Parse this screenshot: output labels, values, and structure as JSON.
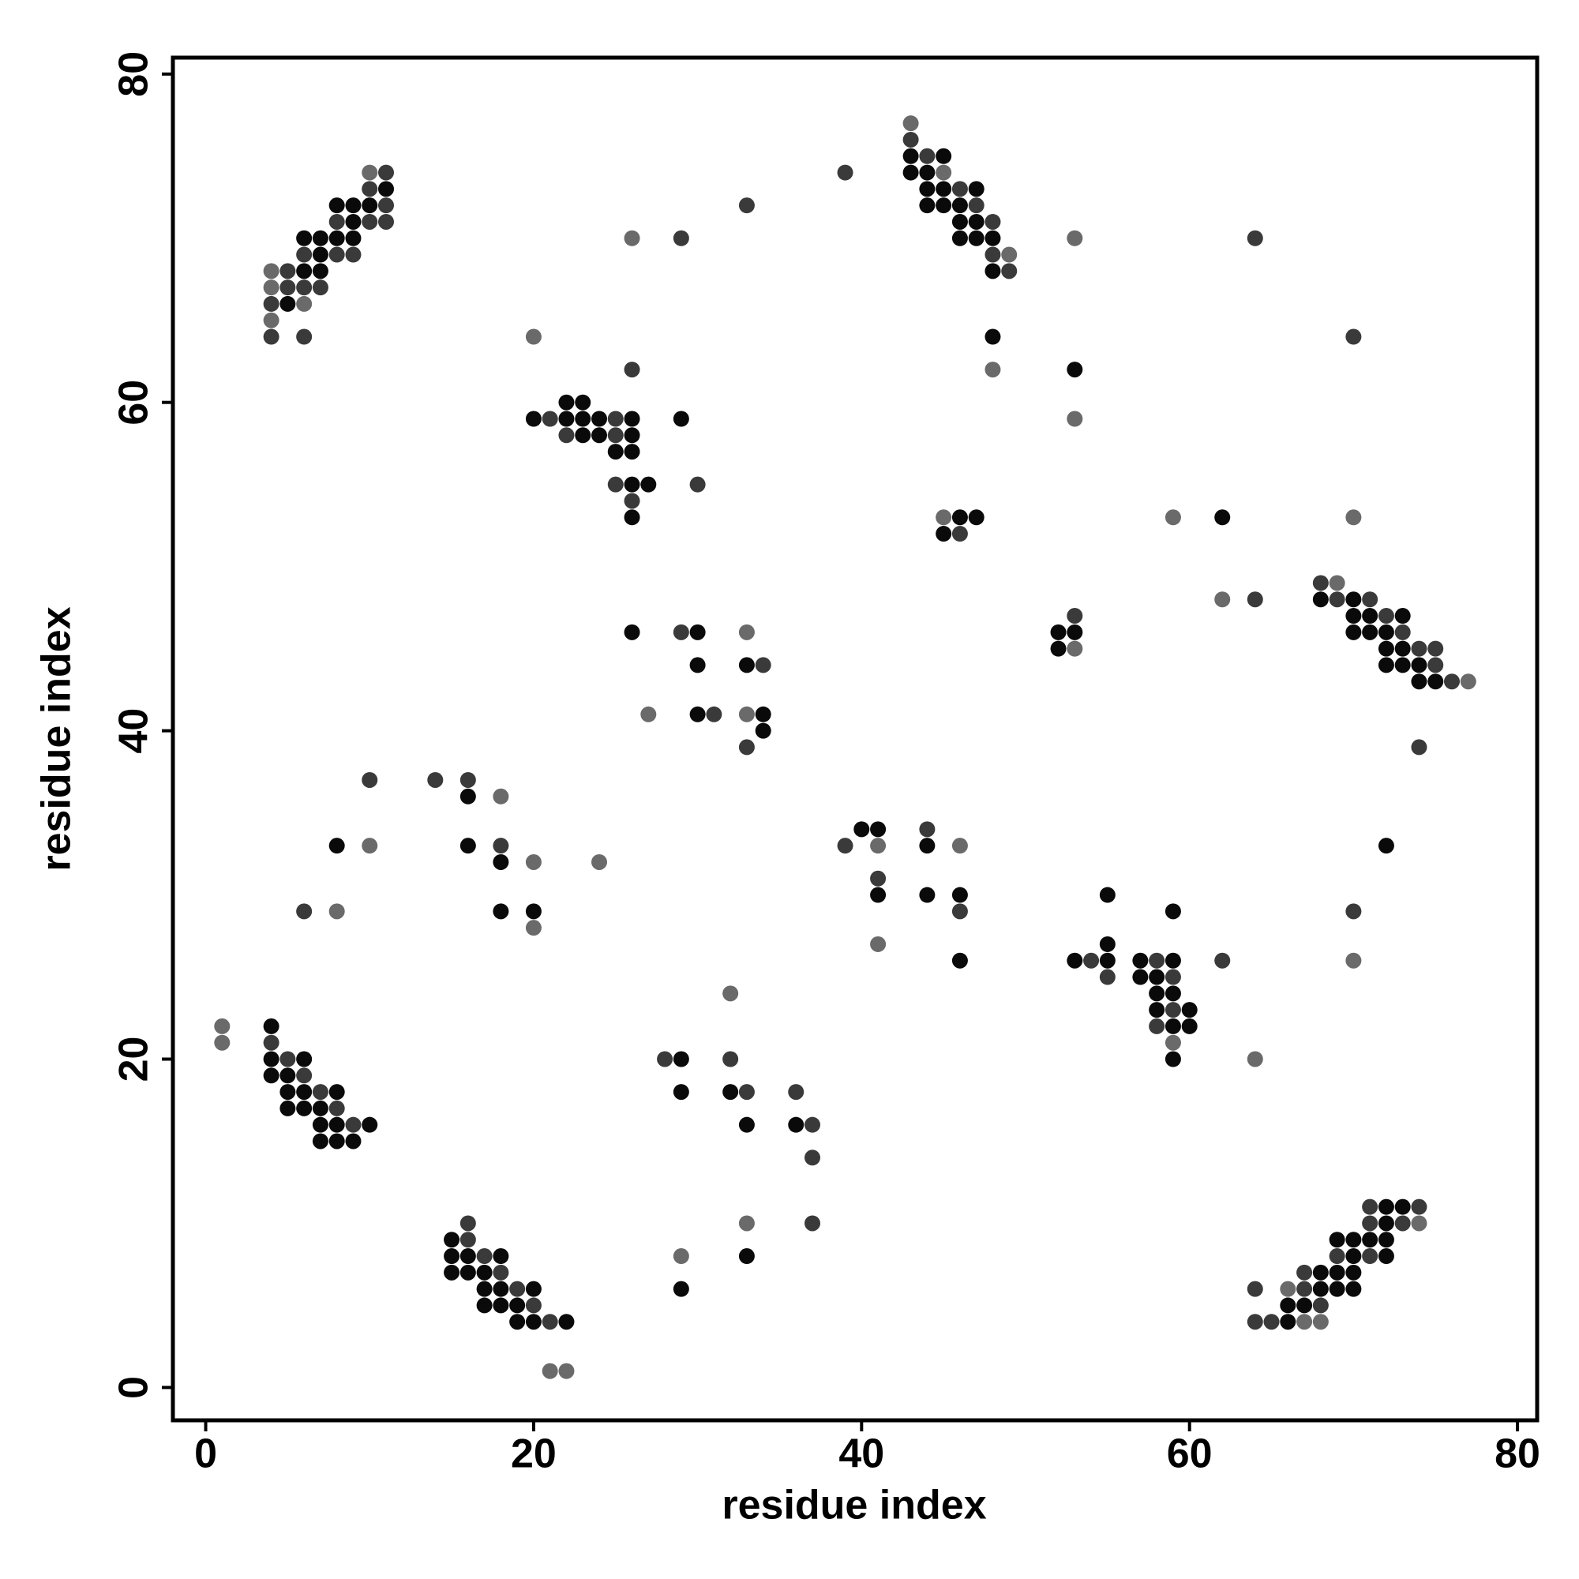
{
  "chart_data": {
    "type": "scatter",
    "x_label": "residue index",
    "y_label": "residue index",
    "xlim": [
      -2,
      81.2
    ],
    "ylim": [
      -2,
      81
    ],
    "xticks": [
      0,
      20,
      40,
      60,
      80
    ],
    "yticks": [
      0,
      20,
      40,
      60,
      80
    ],
    "series": [
      {
        "color": "#0a0a0a",
        "x": [
          11,
          8,
          9,
          10,
          9,
          6,
          7,
          8,
          9,
          7,
          6,
          7,
          5,
          43,
          45,
          43,
          44,
          44,
          45,
          47,
          44,
          45,
          46,
          46,
          47,
          46,
          47,
          48,
          48,
          48,
          53,
          22,
          23,
          20,
          22,
          23,
          24,
          26,
          29,
          23,
          24,
          26,
          25,
          26,
          26,
          27,
          26,
          46,
          47,
          45,
          62,
          68,
          70,
          70,
          71,
          73,
          70,
          71,
          72,
          72,
          73,
          72,
          73,
          74,
          74,
          75,
          52,
          53,
          52,
          26,
          30,
          30,
          33,
          30,
          34,
          34,
          16,
          8,
          16,
          18,
          18,
          20,
          40,
          41,
          44,
          41,
          44,
          46,
          46,
          55,
          59,
          72,
          55,
          53,
          55,
          57,
          59,
          57,
          58,
          58,
          59,
          58,
          60,
          59,
          60,
          59,
          4,
          4,
          6,
          4,
          5,
          5,
          6,
          8,
          5,
          6,
          7,
          7,
          8,
          10,
          7,
          8,
          9,
          29,
          29,
          32,
          33,
          36,
          33,
          29,
          15,
          15,
          16,
          18,
          15,
          16,
          17,
          17,
          18,
          20,
          17,
          18,
          19,
          19,
          20,
          22,
          72,
          73,
          72,
          69,
          70,
          71,
          72,
          70,
          72,
          68,
          69,
          70,
          68,
          69,
          70,
          66,
          67,
          66
        ],
        "values": [
          73,
          72,
          72,
          72,
          71,
          70,
          70,
          70,
          70,
          69,
          68,
          68,
          66,
          75,
          75,
          74,
          74,
          73,
          73,
          73,
          72,
          72,
          72,
          71,
          71,
          70,
          70,
          70,
          68,
          64,
          62,
          60,
          60,
          59,
          59,
          59,
          59,
          59,
          59,
          58,
          58,
          58,
          57,
          57,
          55,
          55,
          53,
          53,
          53,
          52,
          53,
          48,
          48,
          47,
          47,
          47,
          46,
          46,
          46,
          45,
          45,
          44,
          44,
          44,
          43,
          43,
          46,
          46,
          45,
          46,
          46,
          44,
          44,
          41,
          41,
          40,
          36,
          33,
          33,
          32,
          29,
          29,
          34,
          34,
          33,
          30,
          30,
          30,
          26,
          30,
          29,
          33,
          27,
          26,
          26,
          26,
          26,
          25,
          25,
          24,
          24,
          23,
          23,
          22,
          22,
          20,
          22,
          20,
          20,
          19,
          19,
          18,
          18,
          18,
          17,
          17,
          17,
          16,
          16,
          16,
          15,
          15,
          15,
          20,
          18,
          18,
          16,
          16,
          8,
          6,
          9,
          8,
          8,
          8,
          7,
          7,
          7,
          6,
          6,
          6,
          5,
          5,
          5,
          4,
          4,
          4,
          11,
          11,
          10,
          9,
          9,
          9,
          9,
          8,
          8,
          7,
          7,
          7,
          6,
          6,
          6,
          5,
          5,
          4
        ]
      },
      {
        "color": "#3a3a3a",
        "x": [
          11,
          10,
          11,
          8,
          10,
          11,
          6,
          8,
          9,
          5,
          5,
          6,
          7,
          4,
          4,
          6,
          33,
          29,
          39,
          43,
          44,
          46,
          47,
          48,
          48,
          49,
          64,
          26,
          70,
          21,
          25,
          22,
          25,
          25,
          30,
          26,
          46,
          68,
          69,
          71,
          64,
          72,
          73,
          74,
          75,
          75,
          76,
          74,
          53,
          29,
          34,
          31,
          33,
          10,
          14,
          16,
          18,
          6,
          44,
          39,
          41,
          46,
          70,
          54,
          58,
          62,
          55,
          59,
          59,
          58,
          4,
          5,
          6,
          7,
          8,
          9,
          28,
          32,
          33,
          36,
          37,
          37,
          37,
          16,
          16,
          17,
          18,
          19,
          20,
          21,
          71,
          74,
          71,
          73,
          69,
          71,
          67,
          67,
          64,
          68,
          64,
          65
        ],
        "values": [
          74,
          73,
          72,
          71,
          71,
          71,
          69,
          69,
          69,
          68,
          67,
          67,
          67,
          66,
          64,
          64,
          72,
          70,
          74,
          76,
          75,
          73,
          72,
          71,
          69,
          68,
          70,
          62,
          64,
          59,
          59,
          58,
          58,
          55,
          55,
          54,
          52,
          49,
          48,
          48,
          48,
          47,
          46,
          45,
          45,
          44,
          43,
          39,
          47,
          46,
          44,
          41,
          39,
          37,
          37,
          37,
          33,
          29,
          34,
          33,
          31,
          29,
          29,
          26,
          26,
          26,
          25,
          25,
          23,
          22,
          21,
          20,
          19,
          18,
          17,
          16,
          20,
          20,
          18,
          18,
          16,
          14,
          10,
          10,
          9,
          8,
          7,
          6,
          5,
          4,
          11,
          11,
          10,
          10,
          8,
          8,
          7,
          6,
          6,
          5,
          4,
          4
        ]
      },
      {
        "color": "#6a6a6a",
        "x": [
          10,
          4,
          4,
          6,
          4,
          26,
          43,
          45,
          49,
          53,
          48,
          53,
          20,
          45,
          59,
          70,
          69,
          77,
          62,
          53,
          33,
          27,
          33,
          18,
          10,
          20,
          24,
          8,
          20,
          41,
          46,
          41,
          70,
          59,
          64,
          1,
          1,
          32,
          33,
          29,
          21,
          22,
          74,
          66,
          67,
          68
        ],
        "values": [
          74,
          68,
          67,
          66,
          65,
          70,
          77,
          74,
          69,
          70,
          62,
          59,
          64,
          53,
          53,
          53,
          49,
          43,
          48,
          45,
          46,
          41,
          41,
          36,
          33,
          32,
          32,
          29,
          28,
          33,
          33,
          27,
          26,
          21,
          20,
          22,
          21,
          24,
          10,
          8,
          1,
          1,
          10,
          6,
          4,
          4
        ]
      }
    ]
  }
}
